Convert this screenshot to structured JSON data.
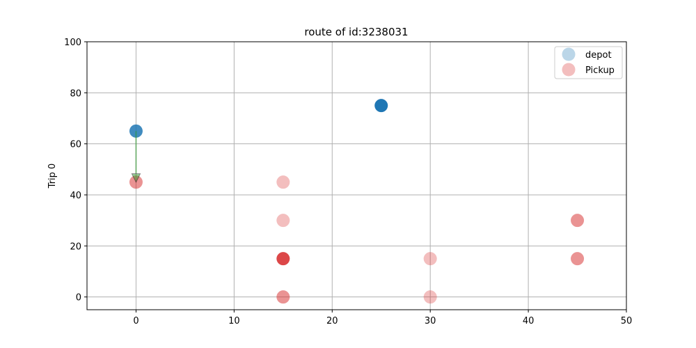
{
  "chart_data": {
    "type": "scatter",
    "title": "route of id:3238031",
    "xlabel": "",
    "ylabel": "Trip 0",
    "xlim": [
      -5,
      50
    ],
    "ylim": [
      -5,
      100
    ],
    "xticks": [
      0,
      10,
      20,
      30,
      40,
      50
    ],
    "yticks": [
      0,
      20,
      40,
      60,
      80,
      100
    ],
    "grid": true,
    "legend_position": "top-right",
    "legend": [
      {
        "name": "depot",
        "color": "#1f77b4",
        "alpha": 0.3
      },
      {
        "name": "Pickup",
        "color": "#d62728",
        "alpha": 0.3
      }
    ],
    "series": [
      {
        "name": "depot",
        "color": "#1f77b4",
        "points": [
          {
            "x": 0,
            "y": 65,
            "alpha": 0.85
          },
          {
            "x": 25,
            "y": 75,
            "alpha": 1.0
          }
        ]
      },
      {
        "name": "Pickup",
        "color": "#d62728",
        "points": [
          {
            "x": 0,
            "y": 45,
            "alpha": 0.5
          },
          {
            "x": 15,
            "y": 45,
            "alpha": 0.3
          },
          {
            "x": 15,
            "y": 30,
            "alpha": 0.3
          },
          {
            "x": 15,
            "y": 15,
            "alpha": 0.85
          },
          {
            "x": 15,
            "y": 0,
            "alpha": 0.5
          },
          {
            "x": 30,
            "y": 15,
            "alpha": 0.3
          },
          {
            "x": 30,
            "y": 0,
            "alpha": 0.3
          },
          {
            "x": 45,
            "y": 30,
            "alpha": 0.5
          },
          {
            "x": 45,
            "y": 15,
            "alpha": 0.5
          }
        ]
      }
    ],
    "arrows": [
      {
        "from": [
          0,
          65
        ],
        "to": [
          0,
          45
        ],
        "color": "#2ca02c",
        "alpha": 0.5
      }
    ]
  }
}
